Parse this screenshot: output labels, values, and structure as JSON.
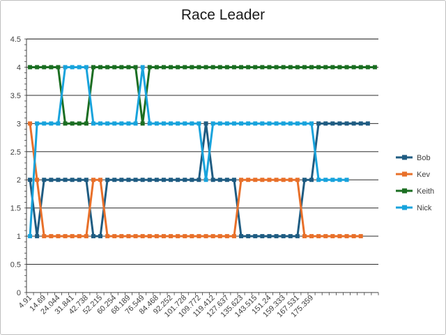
{
  "chart_data": {
    "type": "line",
    "title": "Race Leader",
    "xlabel": "",
    "ylabel": "",
    "ylim": [
      0,
      4.5
    ],
    "y_ticks": [
      "0",
      "0.5",
      "1",
      "1.5",
      "2",
      "2.5",
      "3",
      "3.5",
      "4",
      "4.5"
    ],
    "grid": "horizontal major gridlines",
    "legend_position": "right",
    "x_tick_labels": [
      "4.91",
      "14.69",
      "24.044",
      "31.841",
      "42.738",
      "52.215",
      "60.254",
      "68.189",
      "76.549",
      "84.468",
      "92.252",
      "101.728",
      "109.772",
      "119.412",
      "127.637",
      "135.623",
      "143.515",
      "151.24",
      "159.333",
      "167.531",
      "175.359"
    ],
    "x_tick_every": 2,
    "x_points": 50,
    "series": [
      {
        "name": "Bob",
        "color": "#1f5c82",
        "values": [
          2,
          1,
          2,
          2,
          2,
          2,
          2,
          2,
          2,
          1,
          1,
          2,
          2,
          2,
          2,
          2,
          2,
          2,
          2,
          2,
          2,
          2,
          2,
          2,
          2,
          3,
          2,
          2,
          2,
          2,
          1,
          1,
          1,
          1,
          1,
          1,
          1,
          1,
          1,
          2,
          2,
          3,
          3,
          3,
          3,
          3,
          3,
          3,
          3,
          null
        ]
      },
      {
        "name": "Kev",
        "color": "#e8702a",
        "values": [
          3,
          2,
          1,
          1,
          1,
          1,
          1,
          1,
          1,
          2,
          2,
          1,
          1,
          1,
          1,
          1,
          1,
          1,
          1,
          1,
          1,
          1,
          1,
          1,
          1,
          1,
          1,
          1,
          1,
          1,
          2,
          2,
          2,
          2,
          2,
          2,
          2,
          2,
          2,
          1,
          1,
          1,
          1,
          1,
          1,
          1,
          1,
          1,
          null,
          null
        ]
      },
      {
        "name": "Keith",
        "color": "#1b6e22",
        "values": [
          4,
          4,
          4,
          4,
          4,
          3,
          3,
          3,
          3,
          4,
          4,
          4,
          4,
          4,
          4,
          4,
          3,
          4,
          4,
          4,
          4,
          4,
          4,
          4,
          4,
          4,
          4,
          4,
          4,
          4,
          4,
          4,
          4,
          4,
          4,
          4,
          4,
          4,
          4,
          4,
          4,
          4,
          4,
          4,
          4,
          4,
          4,
          4,
          4,
          4
        ]
      },
      {
        "name": "Nick",
        "color": "#18a3dc",
        "values": [
          1,
          3,
          3,
          3,
          3,
          4,
          4,
          4,
          4,
          3,
          3,
          3,
          3,
          3,
          3,
          3,
          4,
          3,
          3,
          3,
          3,
          3,
          3,
          3,
          3,
          2,
          3,
          3,
          3,
          3,
          3,
          3,
          3,
          3,
          3,
          3,
          3,
          3,
          3,
          3,
          3,
          2,
          2,
          2,
          2,
          2,
          null,
          null,
          null,
          null
        ]
      }
    ]
  }
}
